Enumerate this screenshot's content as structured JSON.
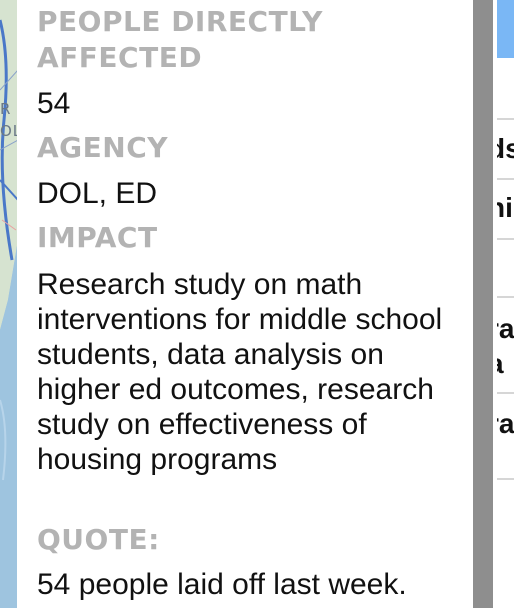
{
  "map": {
    "labels": [
      "R",
      "OL"
    ],
    "colors": {
      "water": "#9ec4df",
      "land": "#d6e3d0",
      "road": "#4a78c8"
    }
  },
  "popup": {
    "fields": [
      {
        "label": "PEOPLE DIRECTLY AFFECTED",
        "value": "54"
      },
      {
        "label": "AGENCY",
        "value": "DOL, ED"
      },
      {
        "label": "IMPACT",
        "value": "Research study on math interventions for middle school students, data analysis on higher ed outcomes, research study on effectiveness of housing programs"
      },
      {
        "label": "QUOTE:",
        "value": "54 people laid off last week."
      }
    ],
    "colors": {
      "label": "#b3b3b3",
      "value": "#111111"
    }
  },
  "side_panel": {
    "rows": [
      {
        "text": "ds"
      },
      {
        "text": "ni"
      },
      {
        "text": "ra"
      },
      {
        "text": "a"
      },
      {
        "text": "ra"
      }
    ],
    "colors": {
      "accent": "#7ab7f5",
      "gutter": "#8e8e8e"
    }
  }
}
